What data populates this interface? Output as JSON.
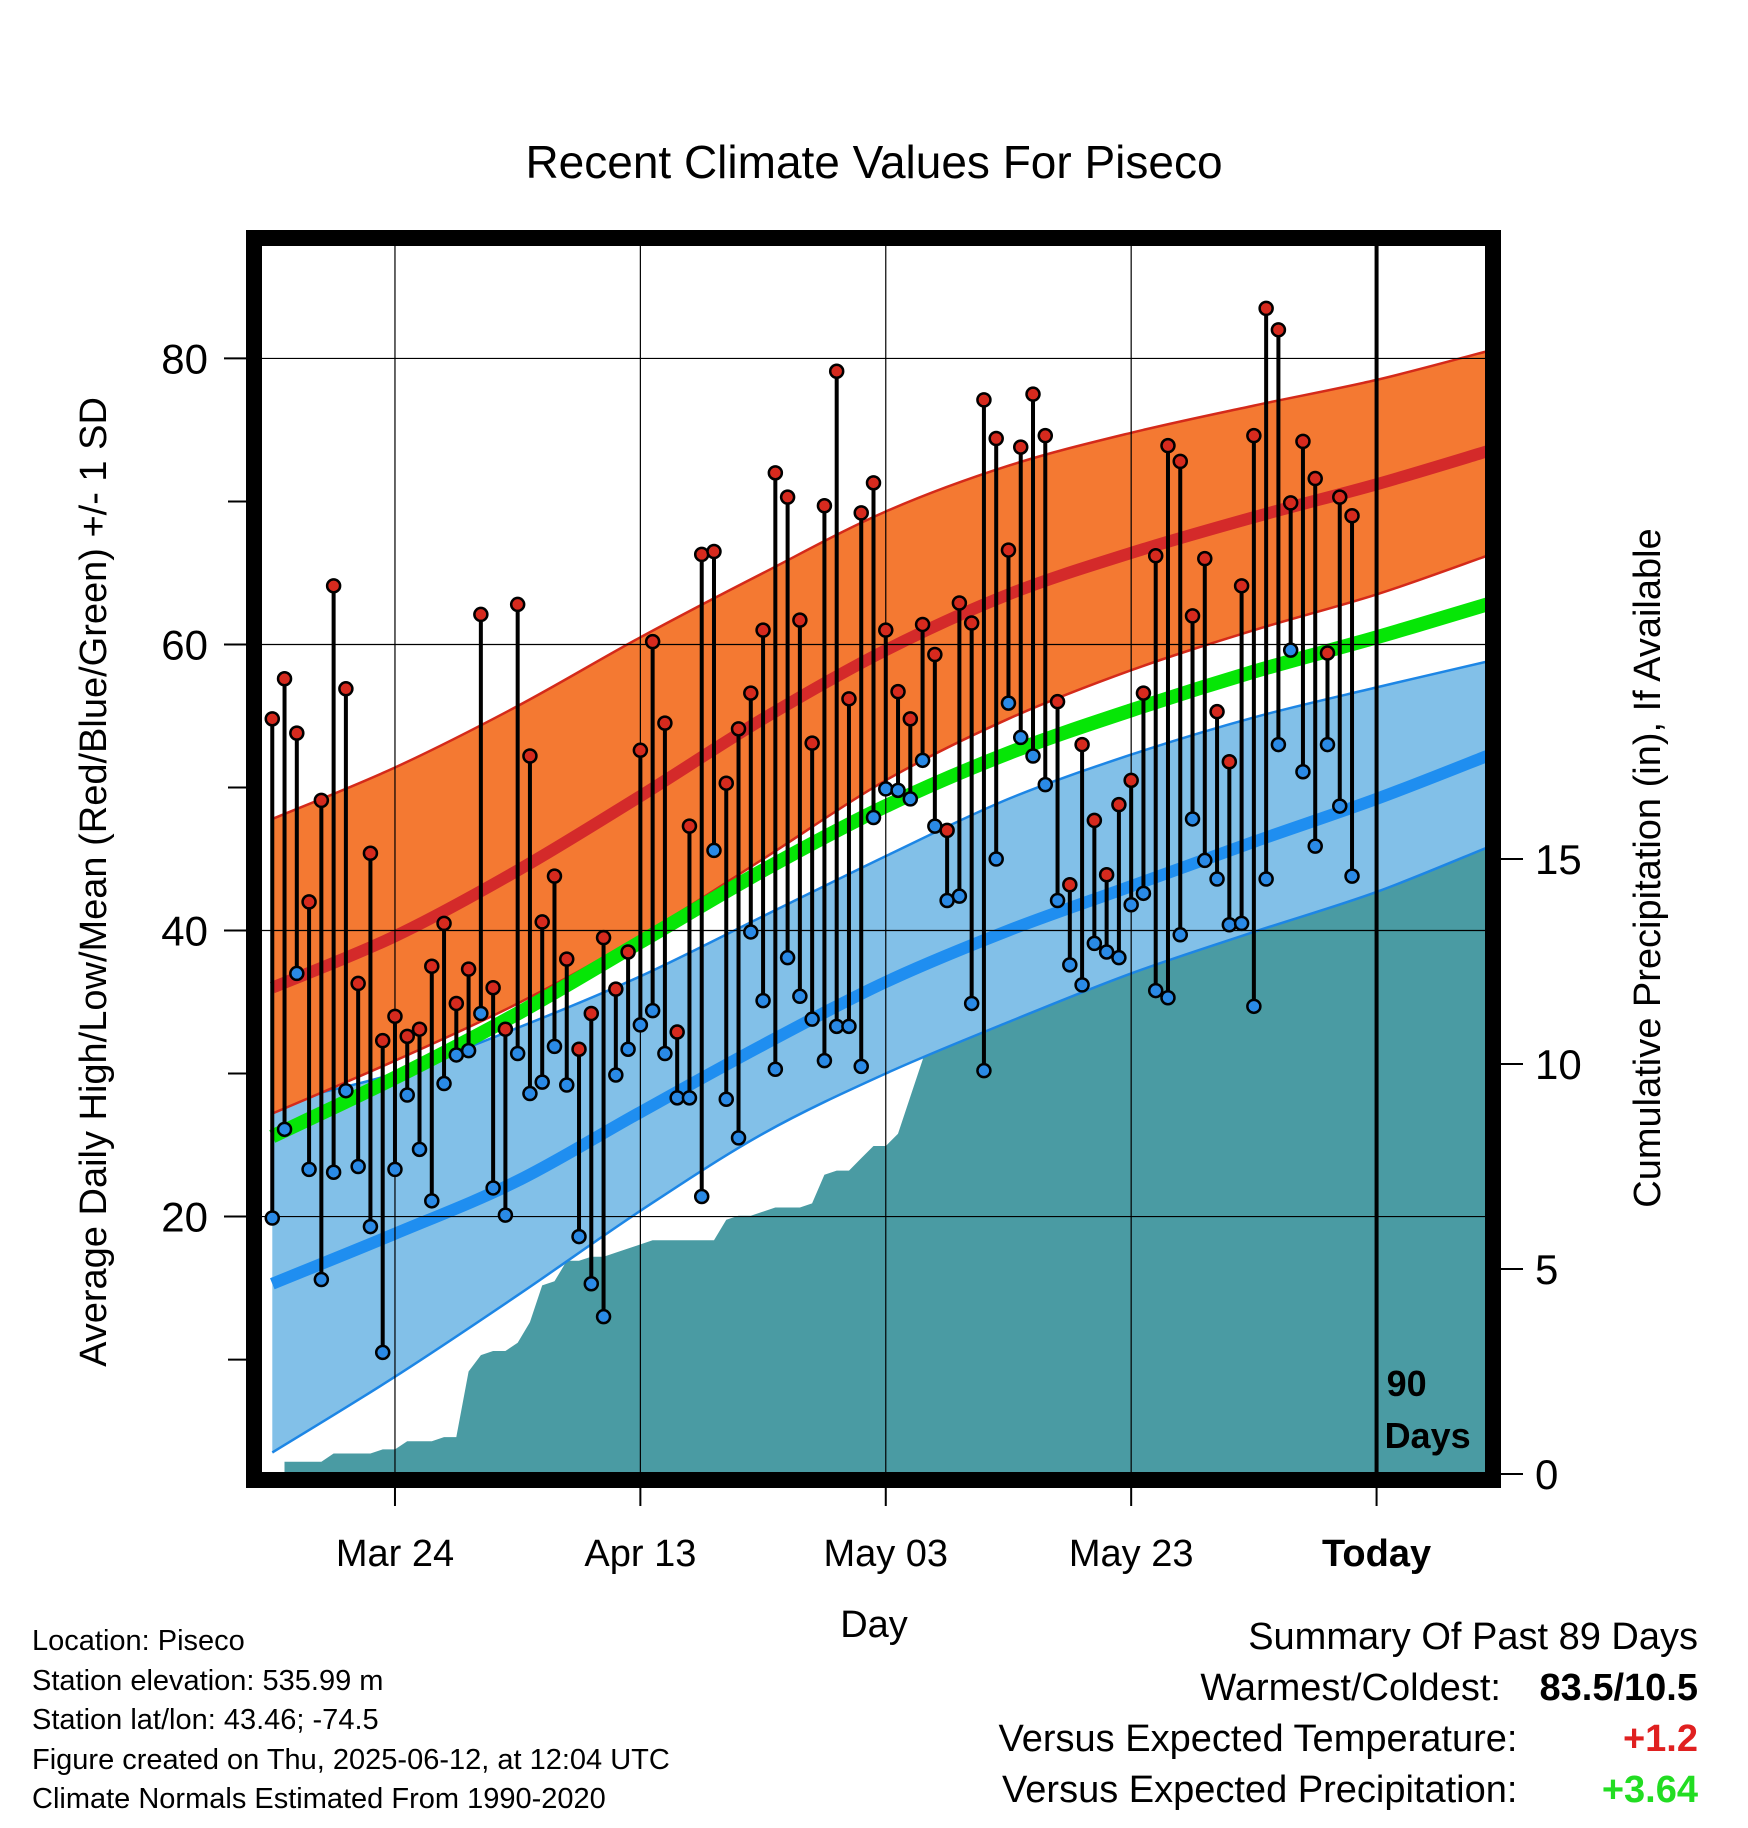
{
  "chart_data": {
    "type": "line",
    "title": "Recent Climate Values For Piseco",
    "xlabel": "Day",
    "ylabel": "Average Daily High/Low/Mean (Red/Blue/Green) +/- 1 SD",
    "y2label": "Cumulative Precipitation (in), If Available",
    "x_tick_labels": [
      "Mar 24",
      "Apr 13",
      "May 03",
      "May 23",
      "Today"
    ],
    "x_tick_days": [
      10,
      30,
      50,
      70,
      90
    ],
    "xlim": [
      -1,
      99
    ],
    "ylim": [
      2,
      88
    ],
    "y_ticks": [
      20,
      40,
      60,
      80
    ],
    "y_minor_ticks": [
      10,
      30,
      50,
      70
    ],
    "y2lim": [
      0,
      30
    ],
    "y2_ticks": [
      0,
      5,
      10,
      15
    ],
    "grid": true,
    "today_marker": {
      "day": 90,
      "label_line1": "90",
      "label_line2": "Days"
    },
    "colors": {
      "high_band": "#f47932",
      "high_band_edge": "#d42a1a",
      "normal_high": "#d42a2a",
      "low_band": "#82c0e8",
      "low_band_edge": "#1d86e5",
      "normal_low": "#1f8ef0",
      "normal_mean": "#06e606",
      "precip": "#4a9ba3",
      "high_dot": "#d62a1e",
      "low_dot": "#2a8ae6"
    },
    "normals": {
      "days": [
        0,
        10,
        20,
        30,
        40,
        50,
        60,
        70,
        80,
        90,
        99
      ],
      "high_plus_sd": [
        47.8,
        51.4,
        55.7,
        60.5,
        65.0,
        69.3,
        72.5,
        74.8,
        76.7,
        78.5,
        80.5
      ],
      "high": [
        36.0,
        39.6,
        44.2,
        49.4,
        54.8,
        59.6,
        63.5,
        66.4,
        68.9,
        71.2,
        73.5
      ],
      "high_minus_sd": [
        27.2,
        30.9,
        34.9,
        39.6,
        45.0,
        50.5,
        54.8,
        58.2,
        61.0,
        63.5,
        66.2
      ],
      "mean": [
        25.6,
        29.7,
        34.2,
        39.2,
        44.2,
        48.7,
        52.4,
        55.4,
        58.1,
        60.5,
        62.8
      ],
      "low_plus_sd": [
        27.9,
        30.0,
        33.2,
        36.8,
        41.0,
        45.2,
        49.2,
        52.3,
        54.9,
        57.0,
        58.8
      ],
      "low": [
        15.3,
        18.8,
        22.5,
        27.3,
        32.0,
        36.4,
        40.0,
        43.1,
        46.2,
        49.2,
        52.2
      ],
      "low_minus_sd": [
        3.5,
        8.8,
        14.5,
        20.4,
        25.8,
        30.0,
        33.6,
        37.0,
        39.9,
        42.7,
        45.8
      ]
    },
    "series": [
      {
        "name": "High",
        "values": [
          54.8,
          57.6,
          53.8,
          42.0,
          49.1,
          64.1,
          56.9,
          36.3,
          45.4,
          32.3,
          34.0,
          32.6,
          33.1,
          37.5,
          40.5,
          34.9,
          37.3,
          62.1,
          36.0,
          33.1,
          62.8,
          52.2,
          40.6,
          43.8,
          38.0,
          31.7,
          34.2,
          39.5,
          35.9,
          38.5,
          52.6,
          60.2,
          54.5,
          32.9,
          47.3,
          66.3,
          66.5,
          50.3,
          54.1,
          56.6,
          61.0,
          72.0,
          70.3,
          61.7,
          53.1,
          69.7,
          79.1,
          56.2,
          69.2,
          71.3,
          61.0,
          56.7,
          54.8,
          61.4,
          59.3,
          47.0,
          62.9,
          61.5,
          77.1,
          74.4,
          66.6,
          73.8,
          77.5,
          74.6,
          56.0,
          43.2,
          53.0,
          47.7,
          43.9,
          48.8,
          50.5,
          56.6,
          66.2,
          73.9,
          72.8,
          62.0,
          66.0,
          55.3,
          51.8,
          64.1,
          74.6,
          83.5,
          82.0,
          69.9,
          74.2,
          71.6,
          59.4,
          70.3,
          69.0
        ]
      },
      {
        "name": "Low",
        "values": [
          19.9,
          26.1,
          37.0,
          23.3,
          15.6,
          23.1,
          28.8,
          23.5,
          19.3,
          10.5,
          23.3,
          28.5,
          24.7,
          21.1,
          29.3,
          31.3,
          31.6,
          34.2,
          22.0,
          20.1,
          31.4,
          28.6,
          29.4,
          31.9,
          29.2,
          18.6,
          15.3,
          13.0,
          29.9,
          31.7,
          33.4,
          34.4,
          31.4,
          28.3,
          28.3,
          21.4,
          45.6,
          28.2,
          25.5,
          39.9,
          35.1,
          30.3,
          38.1,
          35.4,
          33.8,
          30.9,
          33.3,
          33.3,
          30.5,
          47.9,
          49.9,
          49.8,
          49.2,
          51.9,
          47.3,
          42.1,
          42.4,
          34.9,
          30.2,
          45.0,
          55.9,
          53.5,
          52.2,
          50.2,
          42.1,
          37.6,
          36.2,
          39.1,
          38.5,
          38.1,
          41.8,
          42.6,
          35.8,
          35.3,
          39.7,
          47.8,
          44.9,
          43.6,
          40.4,
          40.5,
          34.7,
          43.6,
          53.0,
          59.6,
          51.1,
          45.9,
          53.0,
          48.7,
          43.8
        ]
      }
    ],
    "precip_cumulative": {
      "days": [
        1,
        2,
        3,
        4,
        5,
        6,
        7,
        8,
        9,
        10,
        11,
        12,
        13,
        14,
        15,
        16,
        17,
        18,
        19,
        20,
        21,
        22,
        23,
        24,
        25,
        26,
        27,
        28,
        29,
        30,
        31,
        32,
        33,
        34,
        35,
        36,
        37,
        38,
        39,
        40,
        41,
        42,
        43,
        44,
        45,
        46,
        47,
        48,
        49,
        50,
        51,
        52,
        53,
        54,
        55,
        56,
        57,
        58,
        59,
        60,
        61,
        62,
        63,
        64,
        65,
        66,
        67,
        68,
        69,
        70,
        71,
        72,
        73,
        74,
        75,
        76,
        77,
        78,
        79,
        80,
        81,
        82,
        83,
        84,
        85,
        86,
        87,
        88,
        89,
        90,
        99
      ],
      "values": [
        0.3,
        0.3,
        0.3,
        0.3,
        0.5,
        0.5,
        0.5,
        0.5,
        0.6,
        0.6,
        0.8,
        0.8,
        0.8,
        0.9,
        0.9,
        2.5,
        2.9,
        3.0,
        3.0,
        3.2,
        3.7,
        4.6,
        4.7,
        5.2,
        5.2,
        5.3,
        5.3,
        5.4,
        5.5,
        5.6,
        5.7,
        5.7,
        5.7,
        5.7,
        5.7,
        5.7,
        6.2,
        6.3,
        6.3,
        6.4,
        6.5,
        6.5,
        6.5,
        6.6,
        7.3,
        7.4,
        7.4,
        7.7,
        8.0,
        8.0,
        8.3,
        9.2,
        10.1,
        11.1,
        11.1,
        11.2,
        12.1,
        12.6,
        12.6,
        12.6,
        12.6,
        12.6,
        12.6,
        12.9,
        13.2,
        13.2,
        13.2,
        13.2,
        13.4,
        13.5,
        13.6,
        13.6,
        13.7,
        13.8,
        13.8,
        13.8,
        13.8,
        13.9,
        14.1,
        14.1,
        14.1,
        14.1,
        14.1,
        14.1,
        14.3,
        14.7,
        14.8,
        15.7,
        15.7,
        15.7,
        15.7
      ]
    }
  },
  "info": {
    "location": "Location: Piseco",
    "elevation": "Station elevation: 535.99 m",
    "latlon": "Station lat/lon: 43.46; -74.5",
    "created": "Figure created on Thu, 2025-06-12, at 12:04 UTC",
    "normals": "Climate Normals Estimated From 1990-2020"
  },
  "summary": {
    "title": "Summary Of Past 89 Days",
    "warmest_coldest_label": "Warmest/Coldest:",
    "warmest_coldest_value": "83.5/10.5",
    "temp_label": "Versus Expected Temperature:",
    "temp_value": "+1.2",
    "temp_color": "#e02020",
    "precip_label": "Versus Expected Precipitation:",
    "precip_value": "+3.64",
    "precip_color": "#22dd22"
  }
}
